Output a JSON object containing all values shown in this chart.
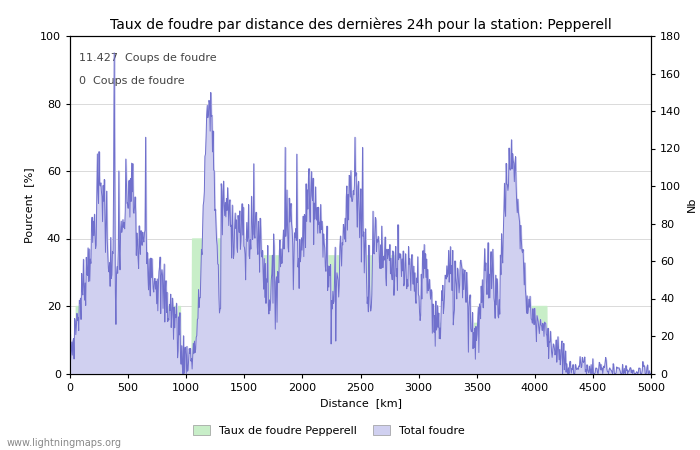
{
  "title": "Taux de foudre par distance des dernières 24h pour la station: Pepperell",
  "xlabel": "Distance  [km]",
  "ylabel_left": "Pourcent  [%]",
  "ylabel_right": "Nb",
  "annotation_line1": "11.427  Coups de foudre",
  "annotation_line2": "0  Coups de foudre",
  "xlim": [
    0,
    5000
  ],
  "ylim_left": [
    0,
    100
  ],
  "ylim_right": [
    0,
    180
  ],
  "xticks": [
    0,
    500,
    1000,
    1500,
    2000,
    2500,
    3000,
    3500,
    4000,
    4500,
    5000
  ],
  "yticks_left": [
    0,
    20,
    40,
    60,
    80,
    100
  ],
  "yticks_right": [
    0,
    20,
    40,
    60,
    80,
    100,
    120,
    140,
    160,
    180
  ],
  "legend_label1": "Taux de foudre Pepperell",
  "legend_label2": "Total foudre",
  "fill_color_green": "#c8eec8",
  "fill_color_blue": "#d0d0f0",
  "line_color": "#7070cc",
  "background_color": "#ffffff",
  "grid_color": "#cccccc",
  "watermark": "www.lightningmaps.org",
  "title_fontsize": 10,
  "label_fontsize": 8,
  "tick_fontsize": 8,
  "annotation_fontsize": 8
}
